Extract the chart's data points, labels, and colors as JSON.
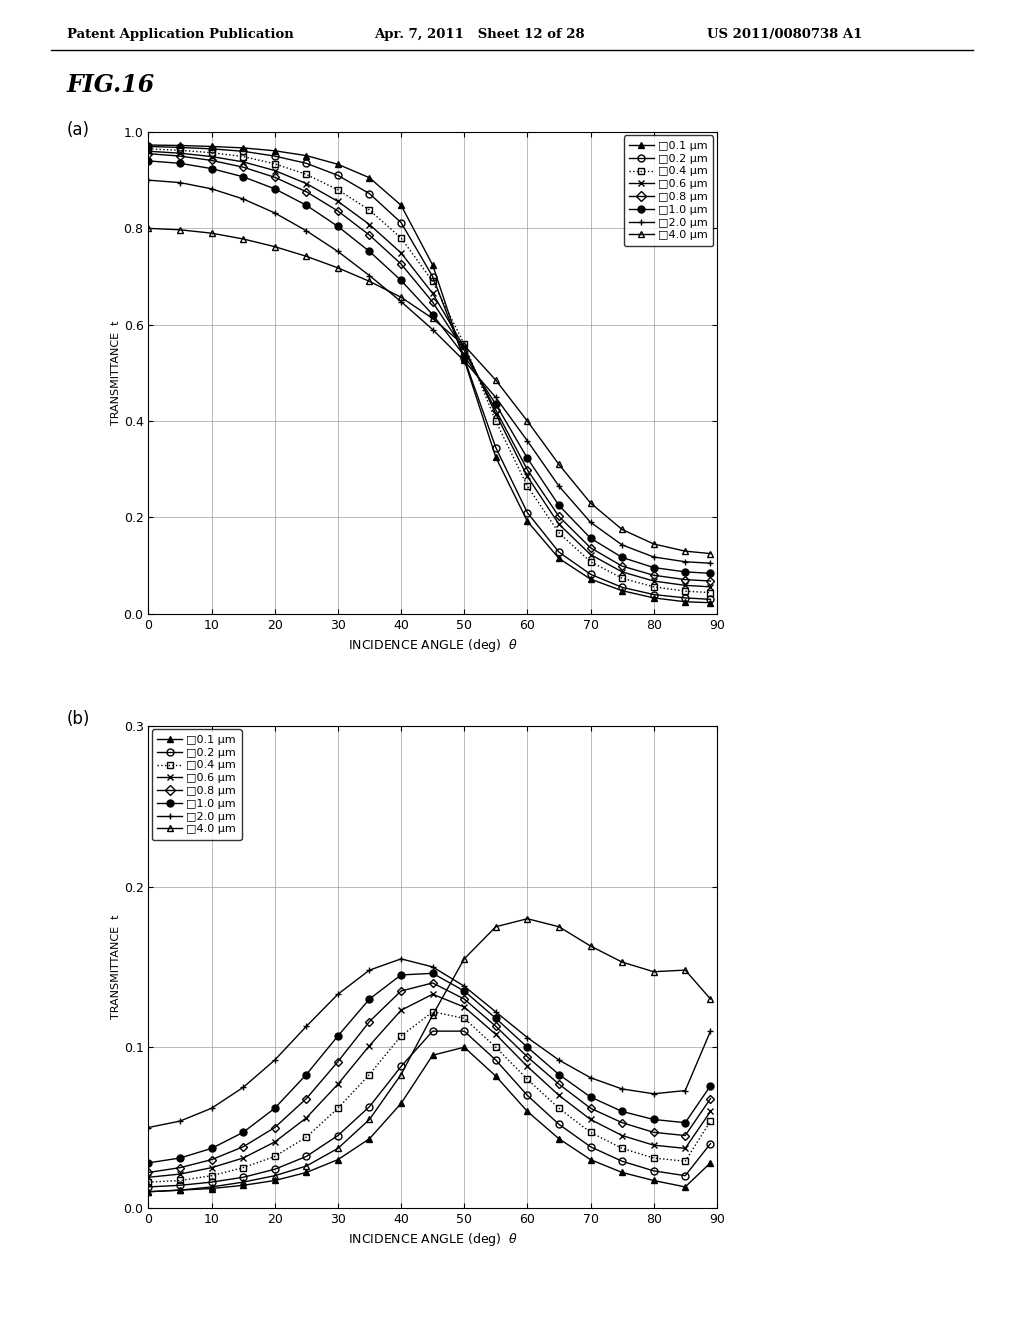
{
  "header_left": "Patent Application Publication",
  "header_mid": "Apr. 7, 2011   Sheet 12 of 28",
  "header_right": "US 2011/0080738 A1",
  "fig_title": "FIG.16",
  "subplot_a_label": "(a)",
  "subplot_b_label": "(b)",
  "xlabel": "INCIDENCE ANGLE (deg)",
  "ylabel": "TRANSMITTANCE  t",
  "series_labels": [
    "0.1 μm",
    "0.2 μm",
    "0.4 μm",
    "0.6 μm",
    "0.8 μm",
    "1.0 μm",
    "2.0 μm",
    "4.0 μm"
  ],
  "angles": [
    0,
    5,
    10,
    15,
    20,
    25,
    30,
    35,
    40,
    45,
    50,
    55,
    60,
    65,
    70,
    75,
    80,
    85,
    89
  ],
  "plot_a_data": [
    [
      0.973,
      0.972,
      0.97,
      0.967,
      0.961,
      0.951,
      0.933,
      0.905,
      0.848,
      0.724,
      0.527,
      0.325,
      0.192,
      0.115,
      0.072,
      0.048,
      0.033,
      0.025,
      0.023
    ],
    [
      0.97,
      0.968,
      0.965,
      0.96,
      0.95,
      0.935,
      0.91,
      0.872,
      0.812,
      0.7,
      0.53,
      0.345,
      0.21,
      0.128,
      0.082,
      0.055,
      0.04,
      0.033,
      0.03
    ],
    [
      0.965,
      0.962,
      0.957,
      0.949,
      0.934,
      0.912,
      0.88,
      0.838,
      0.78,
      0.69,
      0.56,
      0.4,
      0.265,
      0.168,
      0.108,
      0.074,
      0.056,
      0.047,
      0.044
    ],
    [
      0.96,
      0.956,
      0.949,
      0.938,
      0.92,
      0.893,
      0.856,
      0.808,
      0.749,
      0.665,
      0.553,
      0.415,
      0.285,
      0.186,
      0.123,
      0.087,
      0.068,
      0.059,
      0.056
    ],
    [
      0.955,
      0.95,
      0.941,
      0.927,
      0.906,
      0.876,
      0.836,
      0.786,
      0.726,
      0.647,
      0.547,
      0.423,
      0.299,
      0.202,
      0.137,
      0.099,
      0.08,
      0.071,
      0.068
    ],
    [
      0.94,
      0.935,
      0.924,
      0.907,
      0.882,
      0.848,
      0.804,
      0.752,
      0.692,
      0.621,
      0.536,
      0.435,
      0.323,
      0.225,
      0.157,
      0.117,
      0.096,
      0.087,
      0.084
    ],
    [
      0.9,
      0.895,
      0.882,
      0.861,
      0.832,
      0.795,
      0.752,
      0.702,
      0.648,
      0.59,
      0.525,
      0.449,
      0.359,
      0.265,
      0.19,
      0.143,
      0.118,
      0.108,
      0.105
    ],
    [
      0.8,
      0.797,
      0.79,
      0.778,
      0.762,
      0.742,
      0.718,
      0.69,
      0.657,
      0.613,
      0.557,
      0.485,
      0.4,
      0.31,
      0.23,
      0.175,
      0.145,
      0.13,
      0.125
    ]
  ],
  "plot_b_data": [
    [
      0.01,
      0.011,
      0.012,
      0.014,
      0.017,
      0.022,
      0.03,
      0.043,
      0.065,
      0.095,
      0.1,
      0.082,
      0.06,
      0.043,
      0.03,
      0.022,
      0.017,
      0.013,
      0.028
    ],
    [
      0.013,
      0.014,
      0.016,
      0.019,
      0.024,
      0.032,
      0.045,
      0.063,
      0.088,
      0.11,
      0.11,
      0.092,
      0.07,
      0.052,
      0.038,
      0.029,
      0.023,
      0.02,
      0.04
    ],
    [
      0.016,
      0.017,
      0.02,
      0.025,
      0.032,
      0.044,
      0.062,
      0.083,
      0.107,
      0.122,
      0.118,
      0.1,
      0.08,
      0.062,
      0.047,
      0.037,
      0.031,
      0.029,
      0.054
    ],
    [
      0.019,
      0.021,
      0.025,
      0.031,
      0.041,
      0.056,
      0.077,
      0.101,
      0.123,
      0.133,
      0.125,
      0.108,
      0.088,
      0.07,
      0.055,
      0.045,
      0.039,
      0.037,
      0.06
    ],
    [
      0.022,
      0.025,
      0.03,
      0.038,
      0.05,
      0.068,
      0.091,
      0.116,
      0.135,
      0.14,
      0.13,
      0.113,
      0.094,
      0.077,
      0.062,
      0.053,
      0.047,
      0.045,
      0.068
    ],
    [
      0.028,
      0.031,
      0.037,
      0.047,
      0.062,
      0.083,
      0.107,
      0.13,
      0.145,
      0.146,
      0.135,
      0.118,
      0.1,
      0.083,
      0.069,
      0.06,
      0.055,
      0.053,
      0.076
    ],
    [
      0.05,
      0.054,
      0.062,
      0.075,
      0.092,
      0.113,
      0.133,
      0.148,
      0.155,
      0.15,
      0.138,
      0.122,
      0.106,
      0.092,
      0.081,
      0.074,
      0.071,
      0.073,
      0.11
    ],
    [
      0.01,
      0.011,
      0.013,
      0.016,
      0.02,
      0.026,
      0.037,
      0.055,
      0.083,
      0.12,
      0.155,
      0.175,
      0.18,
      0.175,
      0.163,
      0.153,
      0.147,
      0.148,
      0.13
    ]
  ],
  "background_color": "#ffffff"
}
